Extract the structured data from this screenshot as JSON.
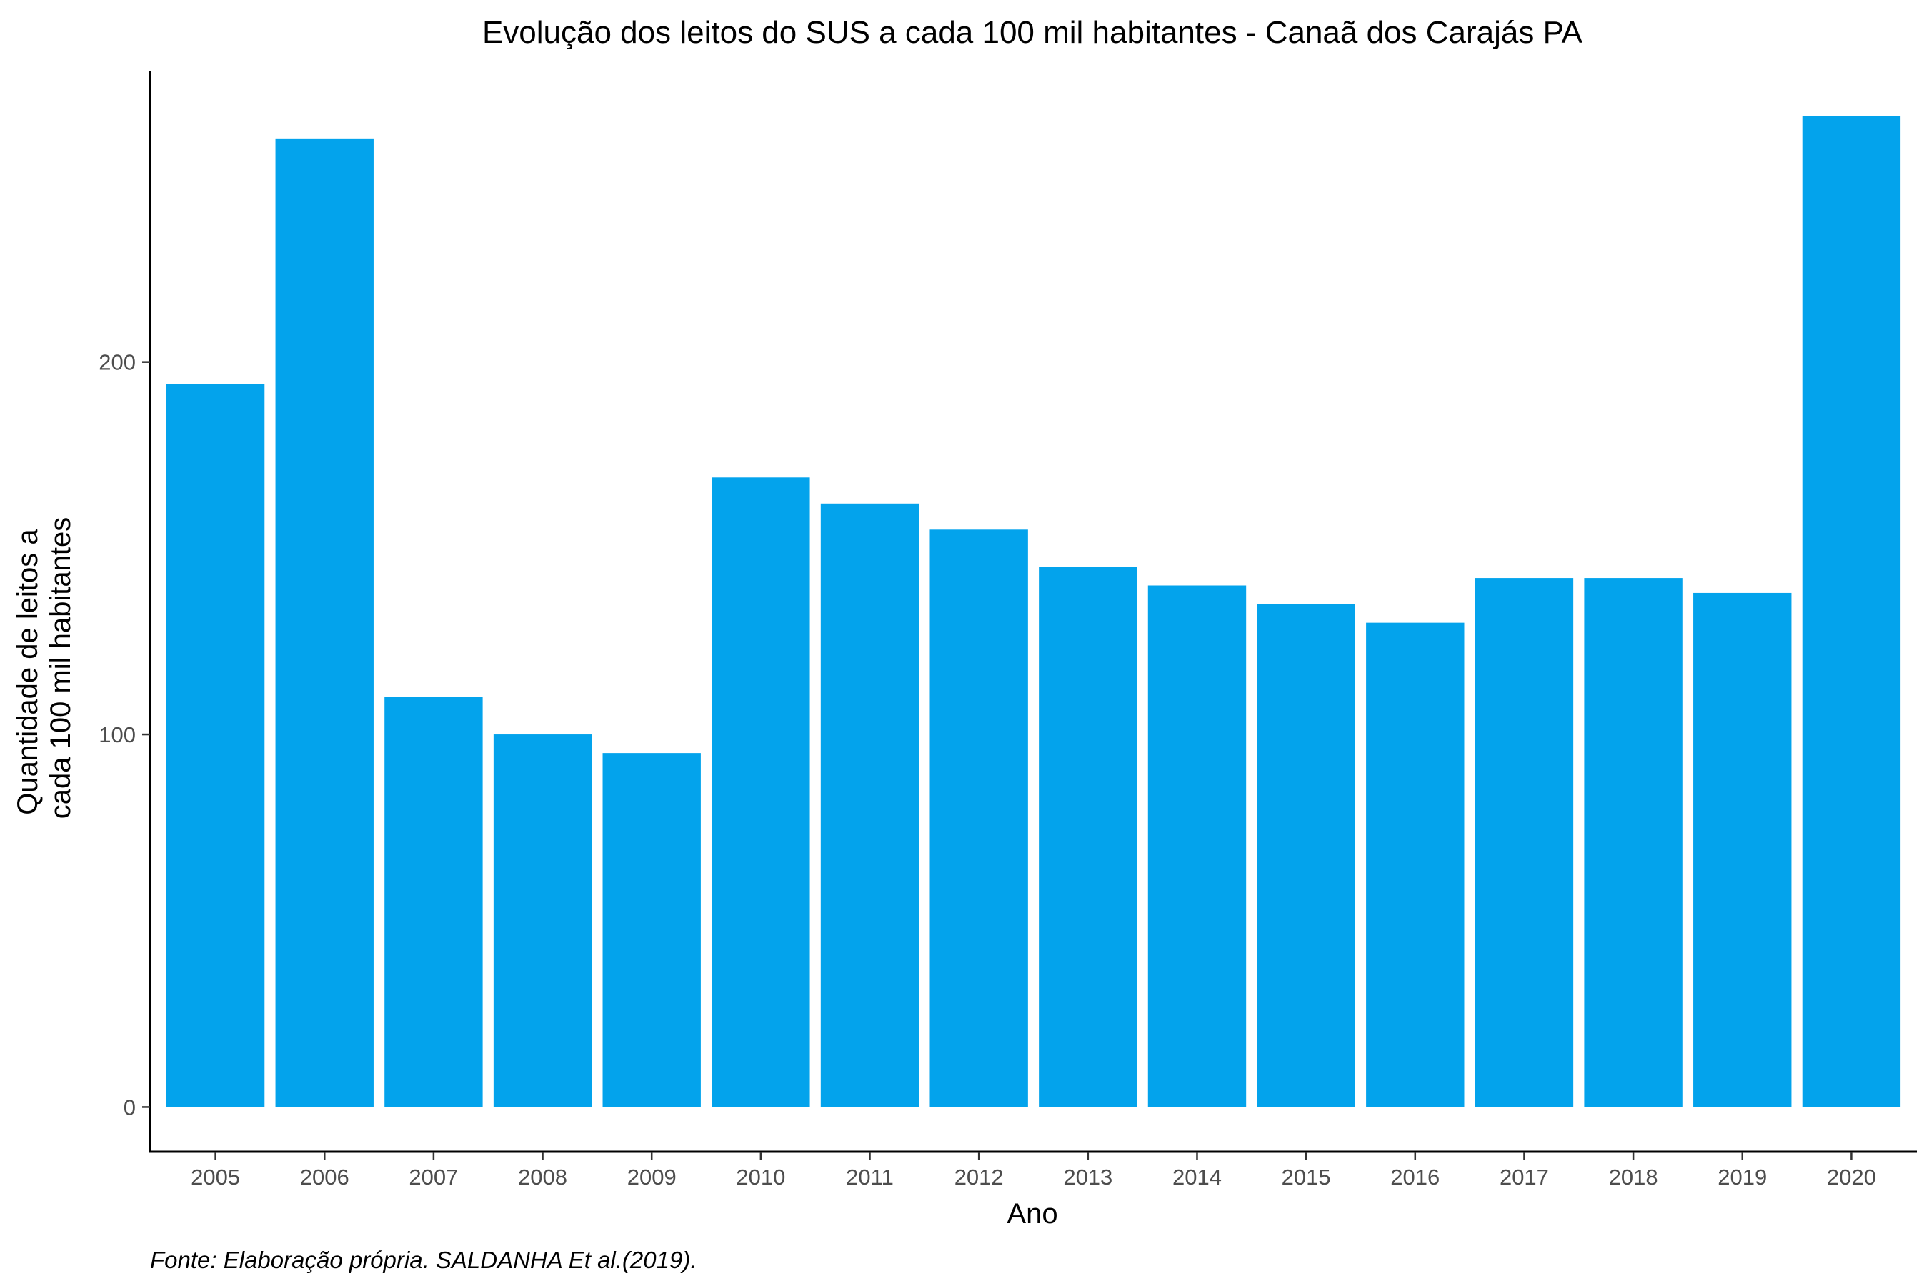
{
  "chart_data": {
    "type": "bar",
    "title": "Evolução dos leitos do SUS a cada 100 mil habitantes -  Canaã dos Carajás PA",
    "xlabel": "Ano",
    "ylabel_lines": [
      "Quantidade de leitos a",
      "cada 100 mil habitantes"
    ],
    "caption": "Fonte: Elaboração própria. SALDANHA Et al.(2019).",
    "categories": [
      "2005",
      "2006",
      "2007",
      "2008",
      "2009",
      "2010",
      "2011",
      "2012",
      "2013",
      "2014",
      "2015",
      "2016",
      "2017",
      "2018",
      "2019",
      "2020"
    ],
    "values": [
      194,
      260,
      110,
      100,
      95,
      169,
      162,
      155,
      145,
      140,
      135,
      130,
      142,
      142,
      138,
      266
    ],
    "yticks": [
      0,
      100,
      200
    ],
    "ylim": [
      -12,
      278
    ],
    "grid": false,
    "legend": "none",
    "bar_color": "#03a3ec"
  }
}
